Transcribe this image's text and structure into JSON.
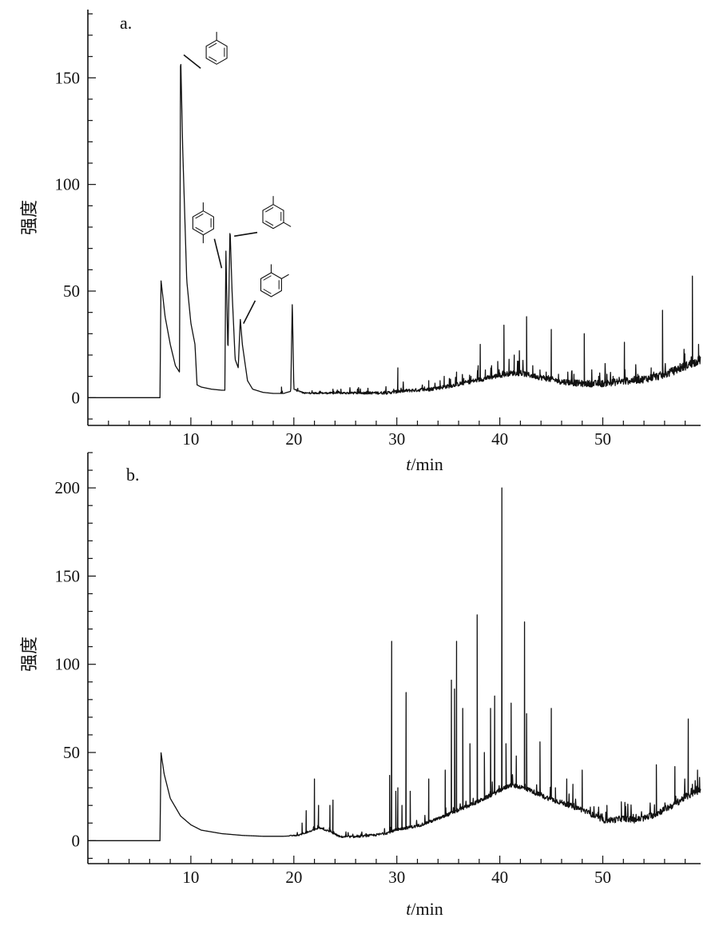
{
  "chart_data": [
    {
      "type": "line",
      "panel_label": "a.",
      "xlabel_italic": "t",
      "xlabel_rest": "/min",
      "ylabel": "强度",
      "xlim": [
        0,
        59.5
      ],
      "ylim": [
        -13,
        182
      ],
      "xticks": [
        10,
        20,
        30,
        40,
        50
      ],
      "yticks": [
        0,
        50,
        100,
        150
      ],
      "series": [
        {
          "baseline": [
            [
              0,
              0
            ],
            [
              7.0,
              0
            ],
            [
              7.1,
              55
            ],
            [
              7.5,
              38
            ],
            [
              8,
              25
            ],
            [
              8.5,
              15
            ],
            [
              8.9,
              12
            ],
            [
              9.0,
              163
            ],
            [
              9.2,
              118
            ],
            [
              9.6,
              55
            ],
            [
              10.0,
              35
            ],
            [
              10.4,
              25
            ],
            [
              10.6,
              6
            ],
            [
              11,
              5
            ],
            [
              12,
              4
            ],
            [
              13,
              3.5
            ],
            [
              13.3,
              3.5
            ],
            [
              13.4,
              70
            ],
            [
              13.6,
              20
            ],
            [
              13.8,
              80
            ],
            [
              14.0,
              50
            ],
            [
              14.3,
              18
            ],
            [
              14.6,
              14
            ],
            [
              14.8,
              37
            ],
            [
              15.0,
              25
            ],
            [
              15.5,
              8
            ],
            [
              16,
              4
            ],
            [
              17,
              2.5
            ],
            [
              18,
              2
            ],
            [
              19,
              2
            ],
            [
              19.7,
              3
            ],
            [
              19.85,
              45
            ],
            [
              20.0,
              4
            ],
            [
              21,
              2
            ],
            [
              23,
              2
            ],
            [
              25,
              2
            ],
            [
              27,
              2
            ],
            [
              29,
              2
            ],
            [
              31,
              3
            ],
            [
              33,
              3.5
            ],
            [
              35,
              5
            ],
            [
              37,
              7
            ],
            [
              39,
              9
            ],
            [
              40,
              10
            ],
            [
              41,
              11
            ],
            [
              42,
              11
            ],
            [
              43,
              10
            ],
            [
              44,
              9
            ],
            [
              46,
              7
            ],
            [
              48,
              6
            ],
            [
              50,
              6
            ],
            [
              52,
              7
            ],
            [
              54,
              8
            ],
            [
              56,
              10
            ],
            [
              58,
              14
            ],
            [
              59.5,
              17
            ]
          ]
        }
      ],
      "peaks": [
        [
          18.8,
          5
        ],
        [
          20.3,
          3
        ],
        [
          22.5,
          3
        ],
        [
          23.8,
          4
        ],
        [
          24.3,
          3
        ],
        [
          27,
          2
        ],
        [
          29.7,
          4
        ],
        [
          30.1,
          14
        ],
        [
          33.1,
          8
        ],
        [
          34.2,
          8
        ],
        [
          34.6,
          10
        ],
        [
          35.1,
          9
        ],
        [
          35.8,
          12
        ],
        [
          36.5,
          9
        ],
        [
          37.2,
          10
        ],
        [
          37.9,
          15
        ],
        [
          38.1,
          25
        ],
        [
          38.6,
          13
        ],
        [
          39.2,
          15
        ],
        [
          39.8,
          17
        ],
        [
          40.4,
          34
        ],
        [
          40.9,
          18
        ],
        [
          41.4,
          20
        ],
        [
          41.9,
          22
        ],
        [
          42.6,
          38
        ],
        [
          43.2,
          15
        ],
        [
          43.9,
          13
        ],
        [
          44.5,
          12
        ],
        [
          45.0,
          32
        ],
        [
          45.7,
          11
        ],
        [
          46.6,
          12
        ],
        [
          47.2,
          11
        ],
        [
          48.2,
          30
        ],
        [
          49.6,
          10
        ],
        [
          50.4,
          11
        ],
        [
          51.0,
          10
        ],
        [
          52.1,
          26
        ],
        [
          53.4,
          11
        ],
        [
          54.7,
          14
        ],
        [
          55.8,
          41
        ],
        [
          56.8,
          13
        ],
        [
          57.5,
          16
        ],
        [
          57.9,
          19
        ],
        [
          58.7,
          57
        ],
        [
          59.3,
          25
        ]
      ],
      "annotations": [
        {
          "structure": "toluene",
          "peak": [
            9.0,
            163
          ],
          "label_at": [
            12.5,
            162
          ]
        },
        {
          "structure": "p-xylene",
          "peak": [
            13.3,
            63
          ],
          "label_at": [
            11.2,
            82
          ]
        },
        {
          "structure": "m-xylene",
          "peak": [
            13.9,
            78
          ],
          "label_at": [
            18.0,
            85
          ]
        },
        {
          "structure": "o-xylene",
          "peak": [
            14.8,
            37
          ],
          "label_at": [
            17.8,
            53
          ]
        }
      ]
    },
    {
      "type": "line",
      "panel_label": "b.",
      "xlabel_italic": "t",
      "xlabel_rest": "/min",
      "ylabel": "强度",
      "xlim": [
        0,
        59.5
      ],
      "ylim": [
        -13,
        220
      ],
      "xticks": [
        10,
        20,
        30,
        40,
        50
      ],
      "yticks": [
        0,
        50,
        100,
        150,
        200
      ],
      "series": [
        {
          "baseline": [
            [
              0,
              0
            ],
            [
              7.0,
              0
            ],
            [
              7.1,
              50
            ],
            [
              7.4,
              38
            ],
            [
              8,
              24
            ],
            [
              9,
              14
            ],
            [
              10,
              9
            ],
            [
              11,
              6
            ],
            [
              12,
              5
            ],
            [
              13,
              4
            ],
            [
              15,
              3
            ],
            [
              17,
              2.5
            ],
            [
              19,
              2.5
            ],
            [
              20.5,
              3
            ],
            [
              21.5,
              5
            ],
            [
              22.5,
              7
            ],
            [
              23.5,
              5
            ],
            [
              24.5,
              2
            ],
            [
              26,
              2
            ],
            [
              28,
              3
            ],
            [
              29,
              4
            ],
            [
              30,
              6
            ],
            [
              32,
              8
            ],
            [
              34,
              12
            ],
            [
              36,
              17
            ],
            [
              38,
              22
            ],
            [
              40,
              28
            ],
            [
              41,
              31
            ],
            [
              42,
              30
            ],
            [
              43,
              28
            ],
            [
              44,
              25
            ],
            [
              45,
              23
            ],
            [
              46,
              21
            ],
            [
              48,
              17
            ],
            [
              49,
              14
            ],
            [
              50,
              11
            ],
            [
              51,
              11
            ],
            [
              52,
              12
            ],
            [
              53,
              11
            ],
            [
              54,
              12
            ],
            [
              55,
              14
            ],
            [
              56,
              17
            ],
            [
              57,
              20
            ],
            [
              58,
              24
            ],
            [
              59.5,
              28
            ]
          ]
        }
      ],
      "peaks": [
        [
          20.8,
          10
        ],
        [
          21.2,
          17
        ],
        [
          22.0,
          35
        ],
        [
          22.4,
          20
        ],
        [
          23.5,
          20
        ],
        [
          23.8,
          23
        ],
        [
          27,
          4
        ],
        [
          29.3,
          37
        ],
        [
          29.5,
          113
        ],
        [
          29.9,
          28
        ],
        [
          30.1,
          30
        ],
        [
          30.5,
          20
        ],
        [
          30.9,
          84
        ],
        [
          31.3,
          28
        ],
        [
          33.1,
          35
        ],
        [
          34.7,
          40
        ],
        [
          35.3,
          91
        ],
        [
          35.6,
          86
        ],
        [
          35.8,
          113
        ],
        [
          36.4,
          75
        ],
        [
          37.1,
          55
        ],
        [
          37.8,
          128
        ],
        [
          38.5,
          50
        ],
        [
          39.1,
          75
        ],
        [
          39.5,
          82
        ],
        [
          40.2,
          200
        ],
        [
          40.6,
          55
        ],
        [
          41.1,
          78
        ],
        [
          41.6,
          48
        ],
        [
          42.4,
          124
        ],
        [
          42.6,
          72
        ],
        [
          43.9,
          56
        ],
        [
          45.0,
          75
        ],
        [
          45.4,
          30
        ],
        [
          46.5,
          35
        ],
        [
          47.1,
          32
        ],
        [
          48.0,
          40
        ],
        [
          50.4,
          20
        ],
        [
          51.8,
          22
        ],
        [
          55.2,
          43
        ],
        [
          57.0,
          42
        ],
        [
          58.3,
          69
        ],
        [
          58.7,
          32
        ],
        [
          59.2,
          40
        ]
      ]
    }
  ]
}
